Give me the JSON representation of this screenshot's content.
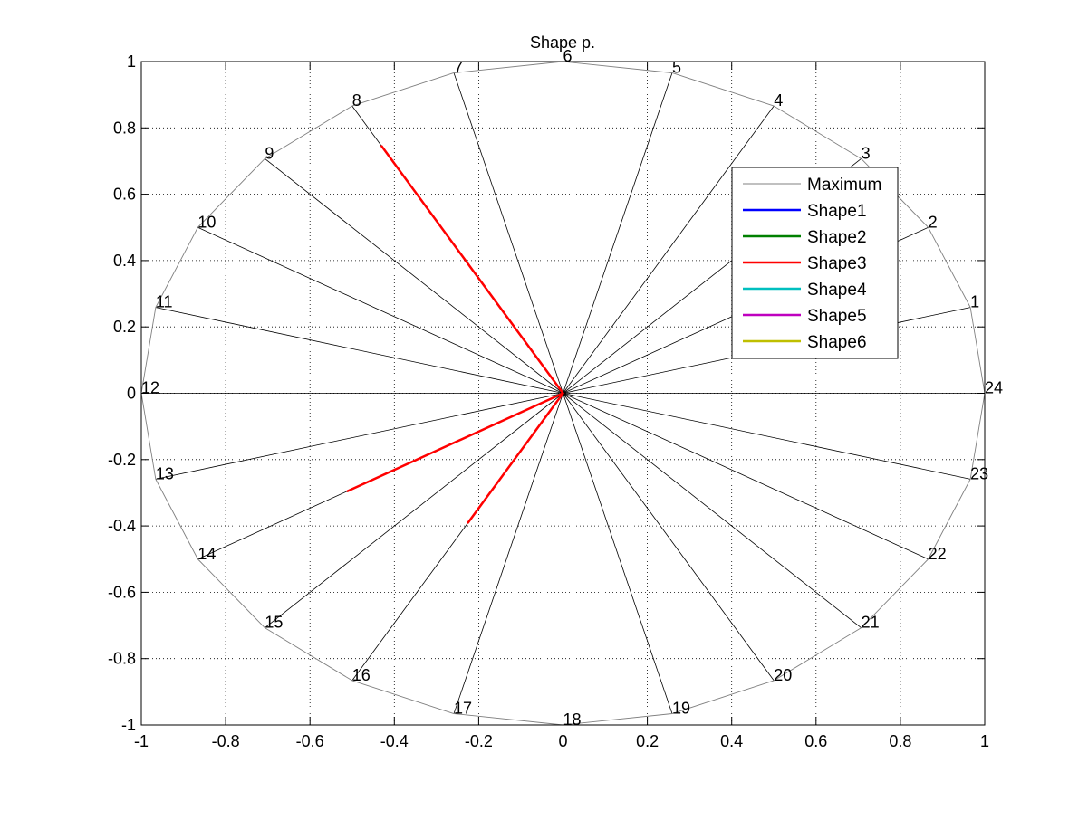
{
  "chart_data": {
    "type": "line",
    "title": "Shape p.",
    "xlabel": "",
    "ylabel": "",
    "xlim": [
      -1,
      1
    ],
    "ylim": [
      -1,
      1
    ],
    "xticks": [
      -1,
      -0.8,
      -0.6,
      -0.4,
      -0.2,
      0,
      0.2,
      0.4,
      0.6,
      0.8,
      1
    ],
    "yticks": [
      -1,
      -0.8,
      -0.6,
      -0.4,
      -0.2,
      0,
      0.2,
      0.4,
      0.6,
      0.8,
      1
    ],
    "xtick_labels": [
      "-1",
      "-0.8",
      "-0.6",
      "-0.4",
      "-0.2",
      "0",
      "0.2",
      "0.4",
      "0.6",
      "0.8",
      "1"
    ],
    "ytick_labels": [
      "-1",
      "-0.8",
      "-0.6",
      "-0.4",
      "-0.2",
      "0",
      "0.2",
      "0.4",
      "0.6",
      "0.8",
      "1"
    ],
    "grid": true,
    "grid_style": "dotted",
    "legend_position": "upper-right",
    "spokes": {
      "count": 24,
      "labels": [
        "1",
        "2",
        "3",
        "4",
        "5",
        "6",
        "7",
        "8",
        "9",
        "10",
        "11",
        "12",
        "13",
        "14",
        "15",
        "16",
        "17",
        "18",
        "19",
        "20",
        "21",
        "22",
        "23",
        "24"
      ],
      "angles_deg": [
        15,
        30,
        45,
        60,
        75,
        90,
        105,
        120,
        135,
        150,
        165,
        180,
        195,
        210,
        225,
        240,
        255,
        270,
        285,
        300,
        315,
        330,
        345,
        360
      ],
      "color": "#000000"
    },
    "series": [
      {
        "name": "Maximum",
        "color": "#808080",
        "radii": [
          1,
          1,
          1,
          1,
          1,
          1,
          1,
          1,
          1,
          1,
          1,
          1,
          1,
          1,
          1,
          1,
          1,
          1,
          1,
          1,
          1,
          1,
          1,
          1
        ]
      },
      {
        "name": "Shape1",
        "color": "#0000ff",
        "radii": [
          0,
          0,
          0,
          0,
          0,
          0,
          0,
          0,
          0,
          0,
          0,
          0,
          0,
          0,
          0,
          0,
          0,
          0,
          0,
          0,
          0,
          0,
          0,
          0
        ]
      },
      {
        "name": "Shape2",
        "color": "#008000",
        "radii": [
          0,
          0,
          0,
          0,
          0,
          0,
          0,
          0,
          0,
          0,
          0,
          0,
          0,
          0,
          0,
          0,
          0,
          0,
          0,
          0,
          0,
          0,
          0,
          0
        ]
      },
      {
        "name": "Shape3",
        "color": "#ff0000",
        "radii": [
          0,
          0,
          0,
          0,
          0,
          0,
          0,
          0.86,
          0,
          0,
          0,
          0,
          0,
          0.59,
          0,
          0.45,
          0,
          0,
          0,
          0,
          0,
          0,
          0,
          0
        ]
      },
      {
        "name": "Shape4",
        "color": "#00bfbf",
        "radii": [
          0,
          0,
          0,
          0,
          0,
          0,
          0,
          0,
          0,
          0,
          0,
          0,
          0,
          0,
          0,
          0,
          0,
          0,
          0,
          0,
          0,
          0,
          0,
          0
        ]
      },
      {
        "name": "Shape5",
        "color": "#bf00bf",
        "radii": [
          0,
          0,
          0,
          0,
          0,
          0,
          0,
          0,
          0,
          0,
          0,
          0,
          0,
          0,
          0,
          0,
          0,
          0,
          0,
          0,
          0,
          0,
          0,
          0
        ]
      },
      {
        "name": "Shape6",
        "color": "#bfbf00",
        "radii": [
          0,
          0,
          0,
          0,
          0,
          0,
          0,
          0,
          0,
          0,
          0,
          0,
          0,
          0,
          0,
          0,
          0,
          0,
          0,
          0,
          0,
          0,
          0,
          0
        ]
      }
    ]
  }
}
